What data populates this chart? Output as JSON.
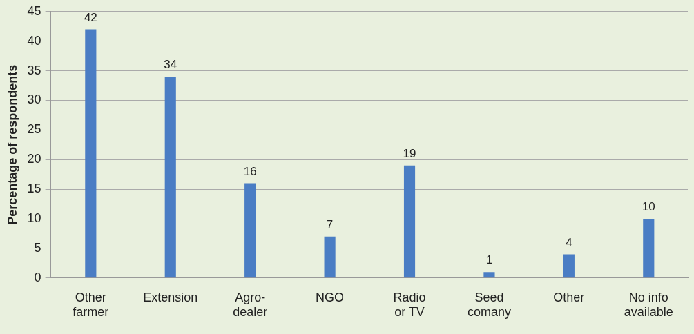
{
  "chart_data": {
    "type": "bar",
    "ylabel": "Percentage of respondents",
    "categories": [
      "Other\nfarmer",
      "Extension",
      "Agro-\ndealer",
      "NGO",
      "Radio\nor TV",
      "Seed\ncomany",
      "Other",
      "No info\navailable"
    ],
    "values": [
      42,
      34,
      16,
      7,
      19,
      1,
      4,
      10
    ],
    "color": "#4a7dc4",
    "ylim": [
      0,
      45
    ],
    "yticks": [
      0,
      5,
      10,
      15,
      20,
      25,
      30,
      35,
      40,
      45
    ],
    "grid": "y",
    "data_labels": true,
    "legend": false
  }
}
